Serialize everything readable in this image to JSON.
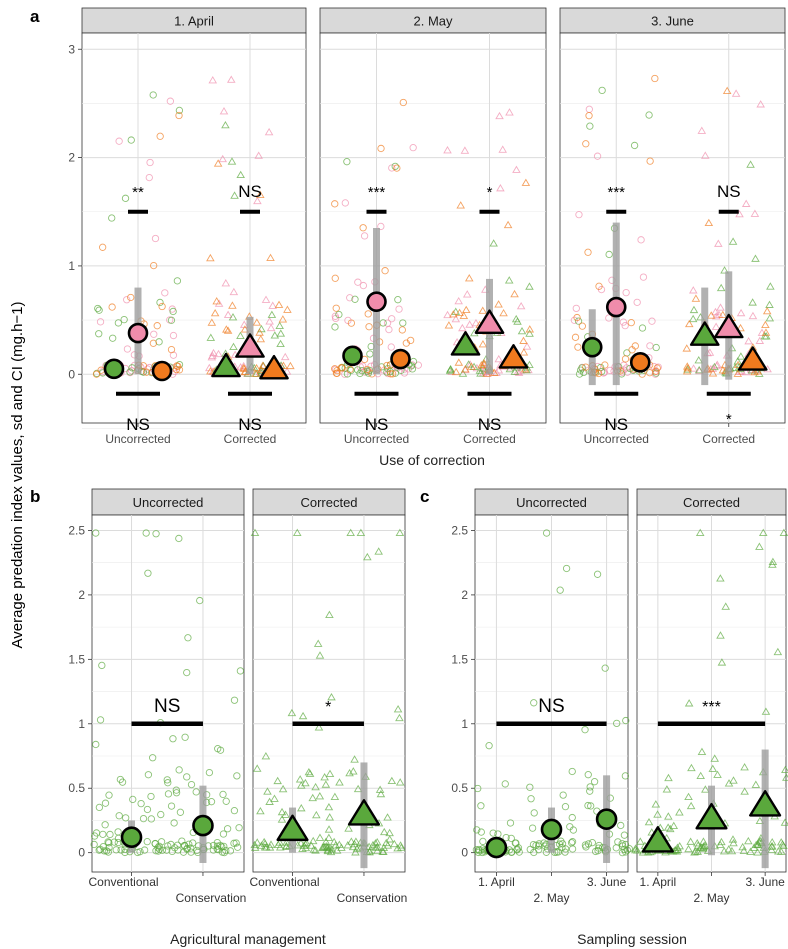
{
  "figure": {
    "y_axis_label": "Average predation index values, sd and CI (mg.h−1)",
    "panel_letters": [
      "a",
      "b",
      "c"
    ],
    "colors": {
      "strip": "#d9d9d9",
      "grid": "#ebebeb",
      "pink": "#f08cab",
      "green": "#5aa83c",
      "orange": "#f07a1e",
      "bar": "#9e9e9e"
    }
  },
  "chart_data": [
    {
      "panel": "a",
      "type": "scatter",
      "xlabel": "Use of correction",
      "ylim": [
        -0.45,
        3.15
      ],
      "y_ticks": [
        0,
        1,
        2,
        3
      ],
      "x_categories": [
        "Uncorrected",
        "Corrected"
      ],
      "facets": [
        {
          "strip": "1. April",
          "groups": [
            {
              "category": "Uncorrected",
              "summary": [
                {
                  "color": "green",
                  "mean": 0.05
                },
                {
                  "color": "pink",
                  "mean": 0.38,
                  "sd_low": 0.0,
                  "sd_high": 0.8
                },
                {
                  "color": "orange",
                  "mean": 0.03
                }
              ],
              "top_sig": "**",
              "top_y": 1.5,
              "bottom_sig": "NS",
              "bottom_y": -0.18
            },
            {
              "category": "Corrected",
              "summary": [
                {
                  "color": "green",
                  "mean": 0.06
                },
                {
                  "color": "pink",
                  "mean": 0.24,
                  "sd_low": 0.0,
                  "sd_high": 0.53
                },
                {
                  "color": "orange",
                  "mean": 0.04
                }
              ],
              "top_sig": "NS",
              "top_y": 1.5,
              "bottom_sig": "NS",
              "bottom_y": -0.18
            }
          ]
        },
        {
          "strip": "2. May",
          "groups": [
            {
              "category": "Uncorrected",
              "summary": [
                {
                  "color": "green",
                  "mean": 0.17
                },
                {
                  "color": "pink",
                  "mean": 0.67,
                  "sd_low": 0.0,
                  "sd_high": 1.35
                },
                {
                  "color": "orange",
                  "mean": 0.14
                }
              ],
              "top_sig": "***",
              "top_y": 1.5,
              "bottom_sig": "NS",
              "bottom_y": -0.18
            },
            {
              "category": "Corrected",
              "summary": [
                {
                  "color": "green",
                  "mean": 0.26
                },
                {
                  "color": "pink",
                  "mean": 0.46,
                  "sd_low": 0.0,
                  "sd_high": 0.88
                },
                {
                  "color": "orange",
                  "mean": 0.14
                }
              ],
              "top_sig": "*",
              "top_y": 1.5,
              "bottom_sig": "NS",
              "bottom_y": -0.18
            }
          ]
        },
        {
          "strip": "3. June",
          "groups": [
            {
              "category": "Uncorrected",
              "summary": [
                {
                  "color": "green",
                  "mean": 0.25,
                  "sd_low": -0.1,
                  "sd_high": 0.6
                },
                {
                  "color": "pink",
                  "mean": 0.62,
                  "sd_low": -0.1,
                  "sd_high": 1.4
                },
                {
                  "color": "orange",
                  "mean": 0.11
                }
              ],
              "top_sig": "***",
              "top_y": 1.5,
              "bottom_sig": "NS",
              "bottom_y": -0.18
            },
            {
              "category": "Corrected",
              "summary": [
                {
                  "color": "green",
                  "mean": 0.35,
                  "sd_low": -0.1,
                  "sd_high": 0.8
                },
                {
                  "color": "pink",
                  "mean": 0.42,
                  "sd_low": -0.05,
                  "sd_high": 0.95
                },
                {
                  "color": "orange",
                  "mean": 0.12
                }
              ],
              "top_sig": "NS",
              "top_y": 1.5,
              "bottom_sig": "*",
              "bottom_y": -0.18
            }
          ]
        }
      ]
    },
    {
      "panel": "b",
      "type": "scatter",
      "xlabel": "Agricultural management",
      "ylim": [
        -0.15,
        2.62
      ],
      "y_ticks": [
        0.0,
        0.5,
        1.0,
        1.5,
        2.0,
        2.5
      ],
      "x_categories": [
        "Conventional",
        "Conservation"
      ],
      "facets": [
        {
          "strip": "Uncorrected",
          "shape": "circle",
          "summary": [
            {
              "category": "Conventional",
              "mean": 0.12,
              "sd_low": 0.0,
              "sd_high": 0.25
            },
            {
              "category": "Conservation",
              "mean": 0.21,
              "sd_low": -0.08,
              "sd_high": 0.52
            }
          ],
          "sig": "NS",
          "sig_y": 1.0
        },
        {
          "strip": "Corrected",
          "shape": "triangle",
          "summary": [
            {
              "category": "Conventional",
              "mean": 0.17,
              "sd_low": 0.0,
              "sd_high": 0.35
            },
            {
              "category": "Conservation",
              "mean": 0.29,
              "sd_low": -0.12,
              "sd_high": 0.7
            }
          ],
          "sig": "*",
          "sig_y": 1.0
        }
      ]
    },
    {
      "panel": "c",
      "type": "scatter",
      "xlabel": "Sampling session",
      "ylim": [
        -0.15,
        2.62
      ],
      "y_ticks": [
        0.0,
        0.5,
        1.0,
        1.5,
        2.0,
        2.5
      ],
      "x_categories": [
        "1. April",
        "2. May",
        "3. June"
      ],
      "facets": [
        {
          "strip": "Uncorrected",
          "shape": "circle",
          "summary": [
            {
              "category": "1. April",
              "mean": 0.04
            },
            {
              "category": "2. May",
              "mean": 0.18,
              "sd_low": 0.0,
              "sd_high": 0.35
            },
            {
              "category": "3. June",
              "mean": 0.26,
              "sd_low": -0.08,
              "sd_high": 0.6
            }
          ],
          "sig": "NS",
          "sig_y": 1.0
        },
        {
          "strip": "Corrected",
          "shape": "triangle",
          "summary": [
            {
              "category": "1. April",
              "mean": 0.08
            },
            {
              "category": "2. May",
              "mean": 0.26,
              "sd_low": -0.02,
              "sd_high": 0.52
            },
            {
              "category": "3. June",
              "mean": 0.36,
              "sd_low": -0.12,
              "sd_high": 0.8
            }
          ],
          "sig": "***",
          "sig_y": 1.0
        }
      ]
    }
  ]
}
